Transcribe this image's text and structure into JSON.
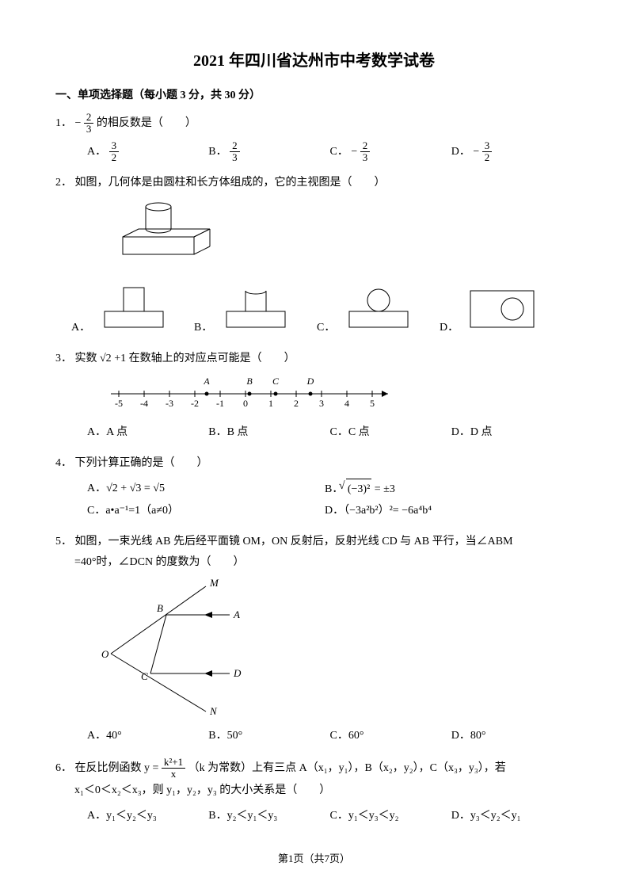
{
  "title": "2021 年四川省达州市中考数学试卷",
  "section1": "一、单项选择题（每小题 3 分，共 30 分）",
  "q1": {
    "num": "1．",
    "text_before": "−",
    "frac_n": "2",
    "frac_d": "3",
    "text_after": "的相反数是（　　）",
    "A_label": "A．",
    "B_label": "B．",
    "C_label": "C．",
    "D_label": "D．",
    "A_n": "3",
    "A_d": "2",
    "B_n": "2",
    "B_d": "3",
    "C_pre": "−",
    "C_n": "2",
    "C_d": "3",
    "D_pre": "−",
    "D_n": "3",
    "D_d": "2"
  },
  "q2": {
    "num": "2．",
    "text": "如图，几何体是由圆柱和长方体组成的，它的主视图是（　　）",
    "A": "A．",
    "B": "B．",
    "C": "C．",
    "D": "D．"
  },
  "q3": {
    "num": "3．",
    "text_before": "实数",
    "sqrt": "√2",
    "text_after": " +1 在数轴上的对应点可能是（　　）",
    "labels_A": "A",
    "labels_B": "B",
    "labels_C": "C",
    "labels_D": "D",
    "ticks": [
      "-5",
      "-4",
      "-3",
      "-2",
      "-1",
      "0",
      "1",
      "2",
      "3",
      "4",
      "5"
    ],
    "A": "A．A 点",
    "B": "B．B 点",
    "C": "C．C 点",
    "D": "D．D 点"
  },
  "q4": {
    "num": "4．",
    "text": "下列计算正确的是（　　）",
    "A": "A．√2 + √3 = √5",
    "B_pre": "B．",
    "B_sqrt": "√((−3)²)",
    "B_post": " = ±3",
    "C": "C．a•a⁻¹=1（a≠0）",
    "D": "D．（−3a²b²）²= −6a⁴b⁴"
  },
  "q5": {
    "num": "5．",
    "text1": "如图，一束光线 AB 先后经平面镜 OM，ON 反射后，反射光线 CD 与 AB 平行，当∠ABM",
    "text2": "=40°时，∠DCN 的度数为（　　）",
    "lblM": "M",
    "lblA": "A",
    "lblB": "B",
    "lblO": "O",
    "lblC": "C",
    "lblD": "D",
    "lblN": "N",
    "A": "A．40°",
    "B": "B．50°",
    "C": "C．60°",
    "D": "D．80°"
  },
  "q6": {
    "num": "6．",
    "text_before": "在反比例函数 y = ",
    "frac_n": "k²+1",
    "frac_d": "x",
    "text_mid": "（k 为常数）上有三点 A（x₁，y₁），B（x₂，y₂），C（x₃，y₃），若",
    "text2": "x₁＜0＜x₂＜x₃，则 y₁，y₂，y₃ 的大小关系是（　　）",
    "A": "A．y₁＜y₂＜y₃",
    "B": "B．y₂＜y₁＜y₃",
    "C": "C．y₁＜y₃＜y₂",
    "D": "D．y₃＜y₂＜y₁"
  },
  "footer": "第1页（共7页）",
  "colors": {
    "line": "#000000"
  }
}
